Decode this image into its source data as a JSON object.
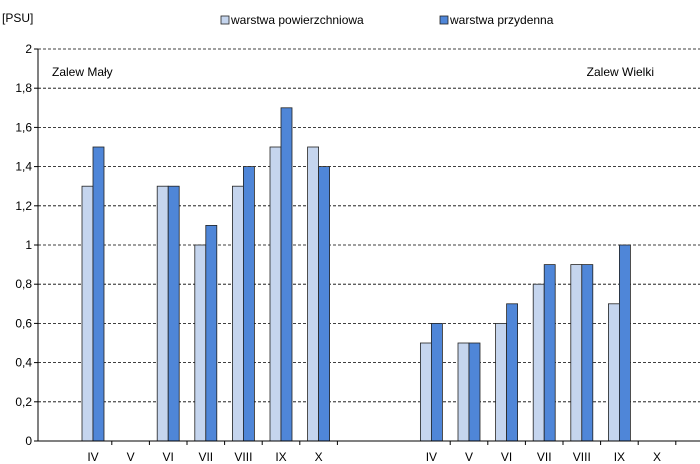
{
  "chart_data": {
    "type": "bar",
    "title": "",
    "ylabel": "[PSU]",
    "xlabel": "",
    "ylim": [
      0,
      2
    ],
    "yticks": [
      "0",
      "0,2",
      "0,4",
      "0,6",
      "0,8",
      "1",
      "1,2",
      "1,4",
      "1,6",
      "1,8",
      "2"
    ],
    "grid": "horizontal dashed",
    "legend_position": "top",
    "colors": {
      "surface": "#c5d5ee",
      "bottom": "#4f86d8",
      "outline": "#222222",
      "grid": "#000000"
    },
    "groups": [
      {
        "label": "Zalew Mały",
        "categories": [
          "IV",
          "V",
          "VI",
          "VII",
          "VIII",
          "IX",
          "X"
        ]
      },
      {
        "label": "Zalew Wielki",
        "categories": [
          "IV",
          "V",
          "VI",
          "VII",
          "VIII",
          "IX",
          "X"
        ]
      }
    ],
    "series": [
      {
        "name": "warstwa powierzchniowa",
        "color_key": "surface",
        "values": [
          [
            1.3,
            null,
            1.3,
            1.0,
            1.3,
            1.5,
            1.5
          ],
          [
            0.5,
            0.5,
            0.6,
            0.8,
            0.9,
            0.7,
            null
          ]
        ]
      },
      {
        "name": "warstwa przydenna",
        "color_key": "bottom",
        "values": [
          [
            1.5,
            null,
            1.3,
            1.1,
            1.4,
            1.7,
            1.4
          ],
          [
            0.6,
            0.5,
            0.7,
            0.9,
            0.9,
            1.0,
            null
          ]
        ]
      }
    ]
  }
}
